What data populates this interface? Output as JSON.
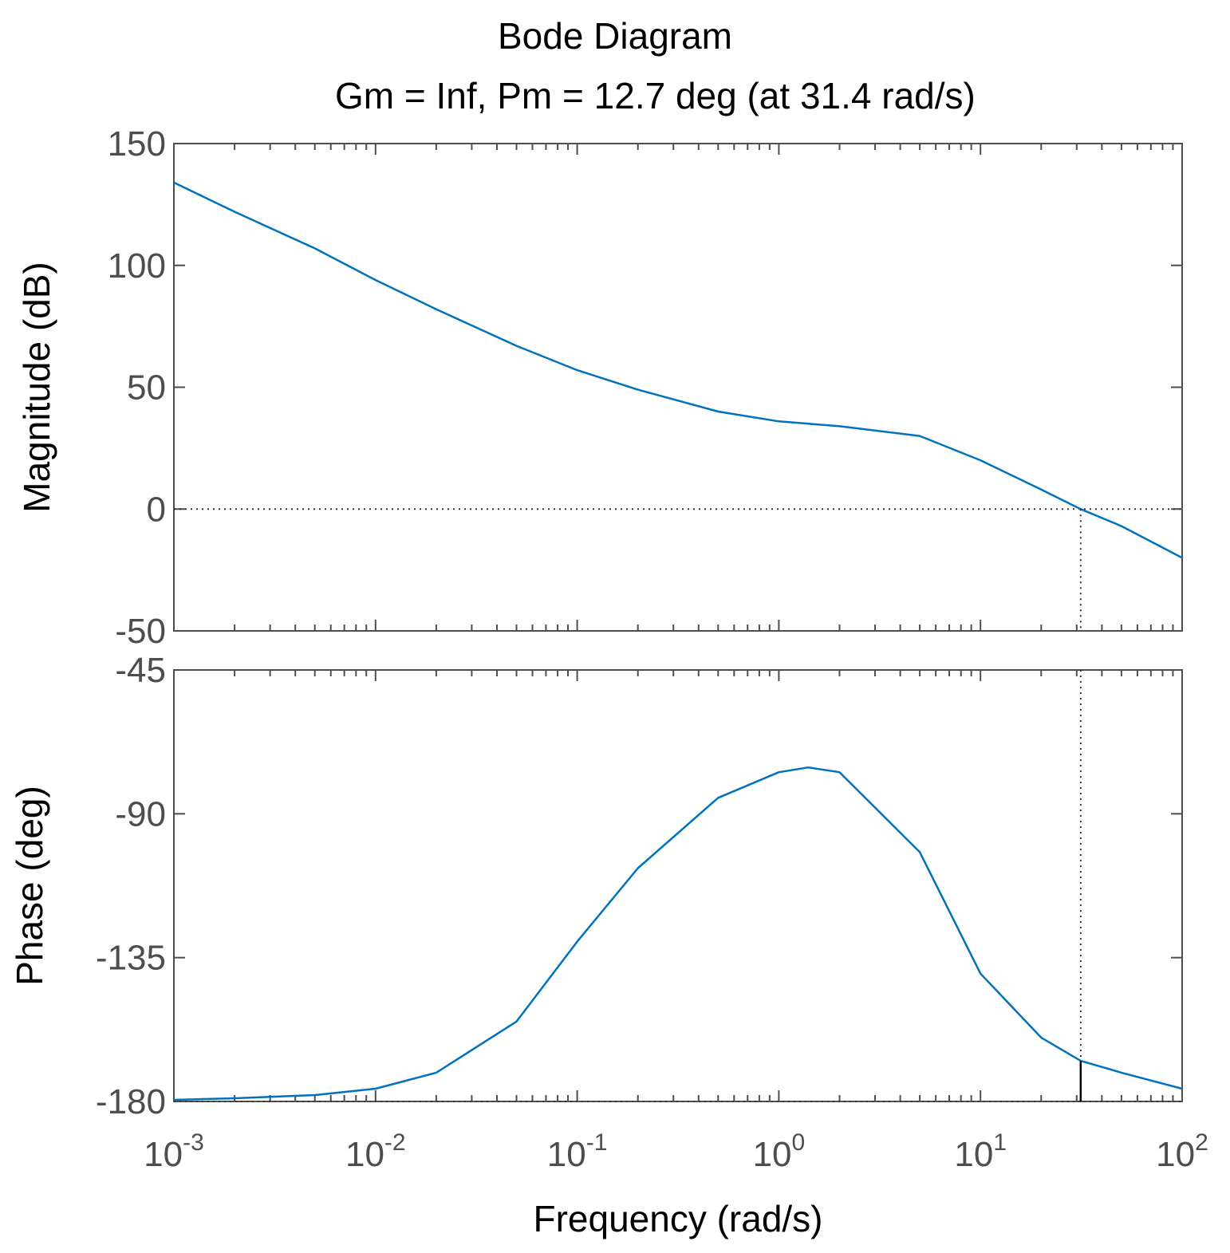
{
  "chart_data": {
    "type": "line",
    "title": "Bode Diagram",
    "subtitle": "Gm = Inf,  Pm = 12.7 deg (at 31.4 rad/s)",
    "xlabel": "Frequency  (rad/s)",
    "xscale": "log",
    "xlim": [
      0.001,
      100
    ],
    "x_ticks": [
      {
        "base": "10",
        "exp": "-3"
      },
      {
        "base": "10",
        "exp": "-2"
      },
      {
        "base": "10",
        "exp": "-1"
      },
      {
        "base": "10",
        "exp": "0"
      },
      {
        "base": "10",
        "exp": "1"
      },
      {
        "base": "10",
        "exp": "2"
      }
    ],
    "color": "#0072BD",
    "crossover_frequency": 31.4,
    "phase_at_crossover": -167.3,
    "magnitude": {
      "ylabel": "Magnitude (dB)",
      "ylim": [
        -50,
        150
      ],
      "yticks": [
        "150",
        "100",
        "50",
        "0",
        "-50"
      ],
      "reference_line": 0,
      "x": [
        0.001,
        0.002,
        0.005,
        0.01,
        0.02,
        0.05,
        0.1,
        0.2,
        0.5,
        1,
        2,
        5,
        10,
        20,
        31.4,
        50,
        100
      ],
      "y": [
        134,
        122,
        107,
        94,
        82,
        67,
        57,
        49,
        40,
        36,
        34,
        30,
        20,
        8,
        0,
        -7,
        -20
      ]
    },
    "phase": {
      "ylabel": "Phase (deg)",
      "ylim": [
        -180,
        -45
      ],
      "yticks": [
        "-45",
        "-90",
        "-135",
        "-180"
      ],
      "reference_line": -180,
      "x": [
        0.001,
        0.002,
        0.005,
        0.01,
        0.02,
        0.05,
        0.1,
        0.2,
        0.5,
        1,
        1.4,
        2,
        5,
        10,
        20,
        31.4,
        50,
        100
      ],
      "y": [
        -179.5,
        -179,
        -178,
        -176,
        -171,
        -155,
        -130,
        -107,
        -85,
        -77,
        -75.5,
        -77,
        -102,
        -140,
        -160,
        -167.3,
        -171,
        -176
      ]
    }
  }
}
